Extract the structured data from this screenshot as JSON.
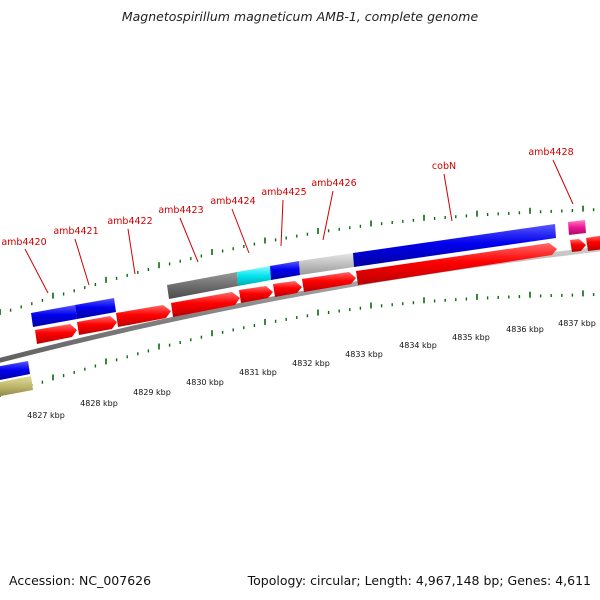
{
  "title": "Magnetospirillum magneticum AMB-1, complete genome",
  "footer": {
    "accession": "Accession: NC_007626",
    "topology": "Topology: circular; Length: 4,967,148 bp; Genes: 4,611"
  },
  "scale_labels": [
    "4827 kbp",
    "4828 kbp",
    "4829 kbp",
    "4830 kbp",
    "4831 kbp",
    "4832 kbp",
    "4833 kbp",
    "4834 kbp",
    "4835 kbp",
    "4836 kbp",
    "4837 kbp"
  ],
  "gene_labels": [
    "amb4420",
    "amb4421",
    "amb4422",
    "amb4423",
    "amb4424",
    "amb4425",
    "amb4426",
    "cobN",
    "amb4428"
  ],
  "colors": {
    "cds": "#ff0000",
    "feature_blue": "#0000ee",
    "feature_dark_gray": "#6e6e6e",
    "feature_cyan": "#00e5ee",
    "feature_light_gray": "#bdbdbd",
    "feature_magenta": "#ee1493",
    "feature_olive": "#bdb76b",
    "backbone": "#8c8c8c",
    "label": "#d10000",
    "tick": "#0a6b0a"
  }
}
